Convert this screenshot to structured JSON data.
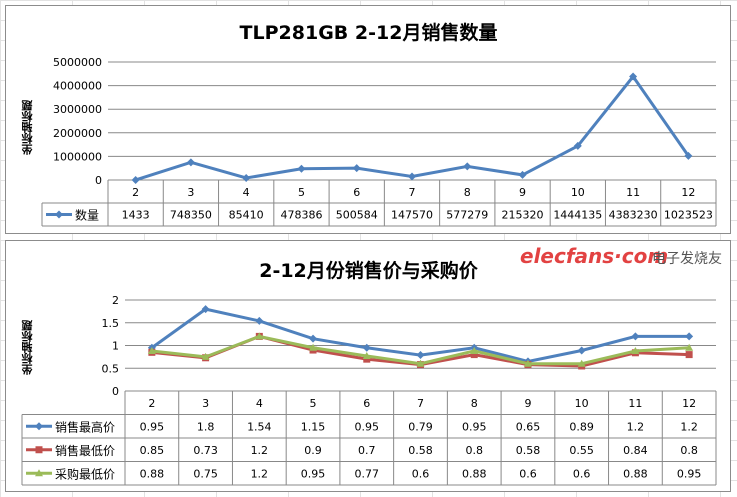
{
  "chart_data": [
    {
      "type": "line",
      "title": "TLP281GB  2-12月销售数量",
      "ylabel": "坐标轴标题",
      "xlabel": "",
      "categories": [
        "2",
        "3",
        "4",
        "5",
        "6",
        "7",
        "8",
        "9",
        "10",
        "11",
        "12"
      ],
      "ylim": [
        0,
        5000000
      ],
      "yticks": [
        "0",
        "1000000",
        "2000000",
        "3000000",
        "4000000",
        "5000000"
      ],
      "grid": true,
      "legend": "table",
      "series": [
        {
          "name": "数量",
          "color": "#4f81bd",
          "marker": "diamond",
          "values": [
            1433,
            748350,
            85410,
            478386,
            500584,
            147570,
            577279,
            215320,
            1444135,
            4383230,
            1023523
          ]
        }
      ]
    },
    {
      "type": "line",
      "title": "2-12月份销售价与采购价",
      "ylabel": "坐标轴标题",
      "xlabel": "",
      "categories": [
        "2",
        "3",
        "4",
        "5",
        "6",
        "7",
        "8",
        "9",
        "10",
        "11",
        "12"
      ],
      "ylim": [
        0,
        2
      ],
      "yticks": [
        "0",
        "0.5",
        "1",
        "1.5",
        "2"
      ],
      "grid": true,
      "legend": "table",
      "series": [
        {
          "name": "销售最高价",
          "color": "#4f81bd",
          "marker": "diamond",
          "values": [
            0.95,
            1.8,
            1.54,
            1.15,
            0.95,
            0.79,
            0.95,
            0.65,
            0.89,
            1.2,
            1.2
          ]
        },
        {
          "name": "销售最低价",
          "color": "#c0504d",
          "marker": "square",
          "values": [
            0.85,
            0.73,
            1.2,
            0.9,
            0.7,
            0.58,
            0.8,
            0.58,
            0.55,
            0.84,
            0.8
          ]
        },
        {
          "name": "采购最低价",
          "color": "#9bbb59",
          "marker": "triangle",
          "values": [
            0.88,
            0.75,
            1.2,
            0.95,
            0.77,
            0.6,
            0.88,
            0.6,
            0.6,
            0.88,
            0.95
          ]
        }
      ]
    }
  ],
  "watermark": "elecfans·com 电子发烧友"
}
